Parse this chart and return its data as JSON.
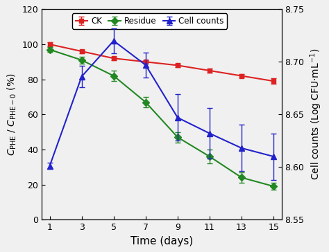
{
  "time": [
    1,
    3,
    5,
    7,
    9,
    11,
    13,
    15
  ],
  "ck_values": [
    100,
    96,
    92,
    90,
    88,
    85,
    82,
    79
  ],
  "ck_yerr": [
    1.0,
    1.0,
    1.0,
    1.0,
    1.0,
    1.0,
    1.0,
    1.5
  ],
  "residue_values": [
    97,
    91,
    82,
    67,
    47,
    36,
    24,
    19
  ],
  "residue_yerr": [
    1.5,
    2.0,
    3.0,
    3.0,
    3.0,
    4.0,
    3.0,
    2.0
  ],
  "cell_counts": [
    8.601,
    8.686,
    8.72,
    8.697,
    8.647,
    8.632,
    8.618,
    8.61
  ],
  "cell_counts_yerr": [
    0.003,
    0.01,
    0.012,
    0.012,
    0.022,
    0.024,
    0.022,
    0.022
  ],
  "ck_color": "#dd2222",
  "residue_color": "#228822",
  "cell_color": "#2222cc",
  "left_ylim": [
    0,
    120
  ],
  "left_yticks": [
    0,
    20,
    40,
    60,
    80,
    100,
    120
  ],
  "right_ylim": [
    8.55,
    8.75
  ],
  "right_yticks": [
    8.55,
    8.6,
    8.65,
    8.7,
    8.75
  ],
  "xlim": [
    0.5,
    15.5
  ],
  "xticks": [
    1,
    3,
    5,
    7,
    9,
    11,
    13,
    15
  ],
  "xlabel": "Time (days)",
  "legend_labels": [
    "CK",
    "Residue",
    "Cell counts"
  ],
  "bg_color": "#f0f0f0"
}
